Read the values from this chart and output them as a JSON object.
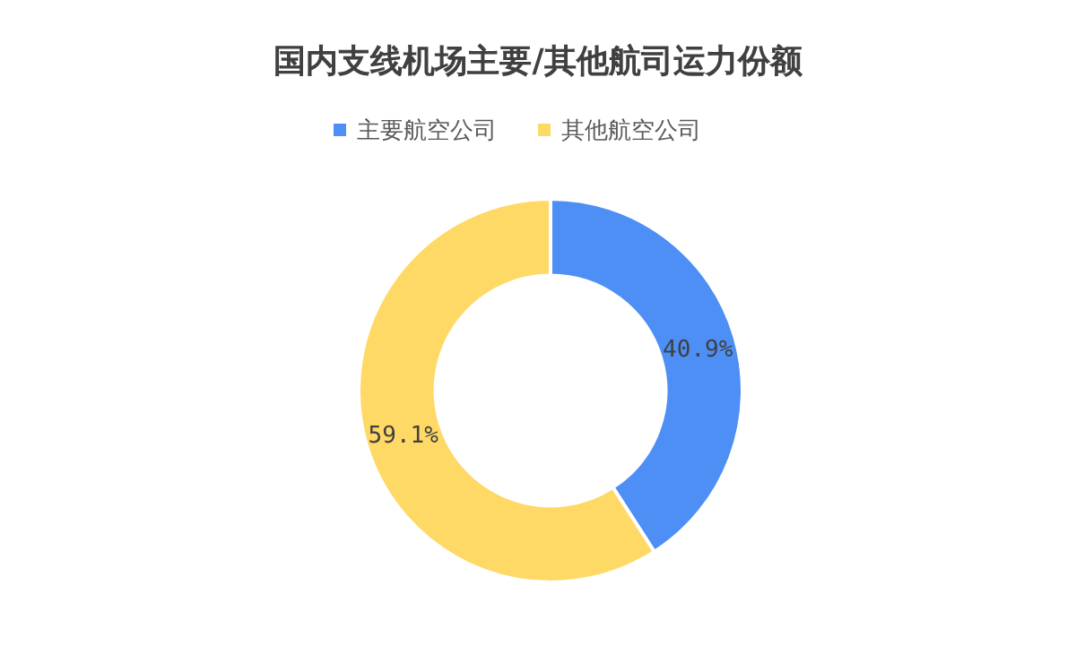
{
  "chart_data": {
    "type": "donut",
    "title": "国内支线机场主要/其他航司运力份额",
    "categories": [
      "主要航空公司",
      "其他航空公司"
    ],
    "values": [
      40.9,
      59.1
    ],
    "colors": [
      "#4d8ff4",
      "#ffd966"
    ],
    "legend": "top",
    "value_labels": [
      "40.9%",
      "59.1%"
    ]
  }
}
